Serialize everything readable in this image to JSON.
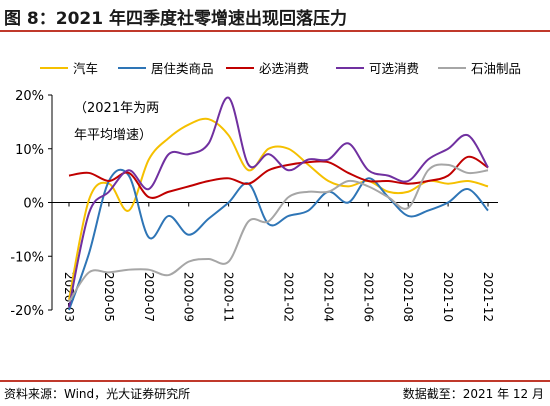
{
  "header": {
    "title": "图 8：2021 年四季度社零增速出现回落压力"
  },
  "footer": {
    "source": "资料来源：Wind，光大证券研究所",
    "date": "数据截至：2021 年 12 月"
  },
  "colors": {
    "rule": "#c0392b"
  },
  "chart_data": {
    "type": "line",
    "x": [
      "2020-03",
      "2020-04",
      "2020-05",
      "2020-06",
      "2020-07",
      "2020-08",
      "2020-09",
      "2020-10",
      "2020-11",
      "2020-12",
      "2021-01",
      "2021-02",
      "2021-03",
      "2021-04",
      "2021-05",
      "2021-06",
      "2021-07",
      "2021-08",
      "2021-09",
      "2021-10",
      "2021-11",
      "2021-12"
    ],
    "x_ticks": [
      "2020-03",
      "2020-05",
      "2020-07",
      "2020-09",
      "2020-11",
      "2021-02",
      "2021-04",
      "2021-06",
      "2021-08",
      "2021-10",
      "2021-12"
    ],
    "y_ticks": [
      "20%",
      "10%",
      "0%",
      "-10%",
      "-20%"
    ],
    "ylim": [
      -20,
      20
    ],
    "annotation": [
      "（2021年为两",
      "年平均增速）"
    ],
    "series": [
      {
        "name": "汽车",
        "color": "#F5C000",
        "values": [
          -18.1,
          0.5,
          3.5,
          -1.5,
          8,
          12,
          14.5,
          15.5,
          12.5,
          6,
          10,
          10,
          7,
          4,
          3,
          4,
          2,
          2,
          4,
          3.5,
          4,
          3
        ]
      },
      {
        "name": "居住类商品",
        "color": "#2E75B6",
        "values": [
          -20,
          -9.5,
          4,
          5,
          -6.5,
          -2.5,
          -6,
          -3,
          0,
          3.5,
          -4,
          -2.5,
          -1.5,
          2,
          0,
          4.5,
          1,
          -2.5,
          -1.5,
          0,
          2.5,
          -1.5
        ]
      },
      {
        "name": "必选消费",
        "color": "#C00000",
        "values": [
          5,
          5.5,
          4,
          5.5,
          1,
          2,
          3,
          4,
          4.5,
          3.5,
          6,
          7,
          7.5,
          7.5,
          5.5,
          4,
          4,
          3.5,
          4,
          5,
          8.5,
          6.5
        ]
      },
      {
        "name": "可选消费",
        "color": "#7030A0",
        "values": [
          -19.5,
          -2,
          2,
          6,
          2.5,
          9,
          9,
          11,
          19.5,
          7,
          9,
          6,
          8,
          8,
          11,
          6,
          5,
          4,
          8,
          10,
          12.5,
          6.5
        ]
      },
      {
        "name": "石油制品",
        "color": "#A6A6A6",
        "values": [
          -18.5,
          -13,
          -13,
          -12.5,
          -12.5,
          -13.5,
          -11,
          -10.5,
          -11,
          -3.5,
          -3.5,
          1,
          2,
          2,
          4,
          3,
          1,
          -1,
          6,
          7,
          5.5,
          6
        ]
      }
    ]
  }
}
